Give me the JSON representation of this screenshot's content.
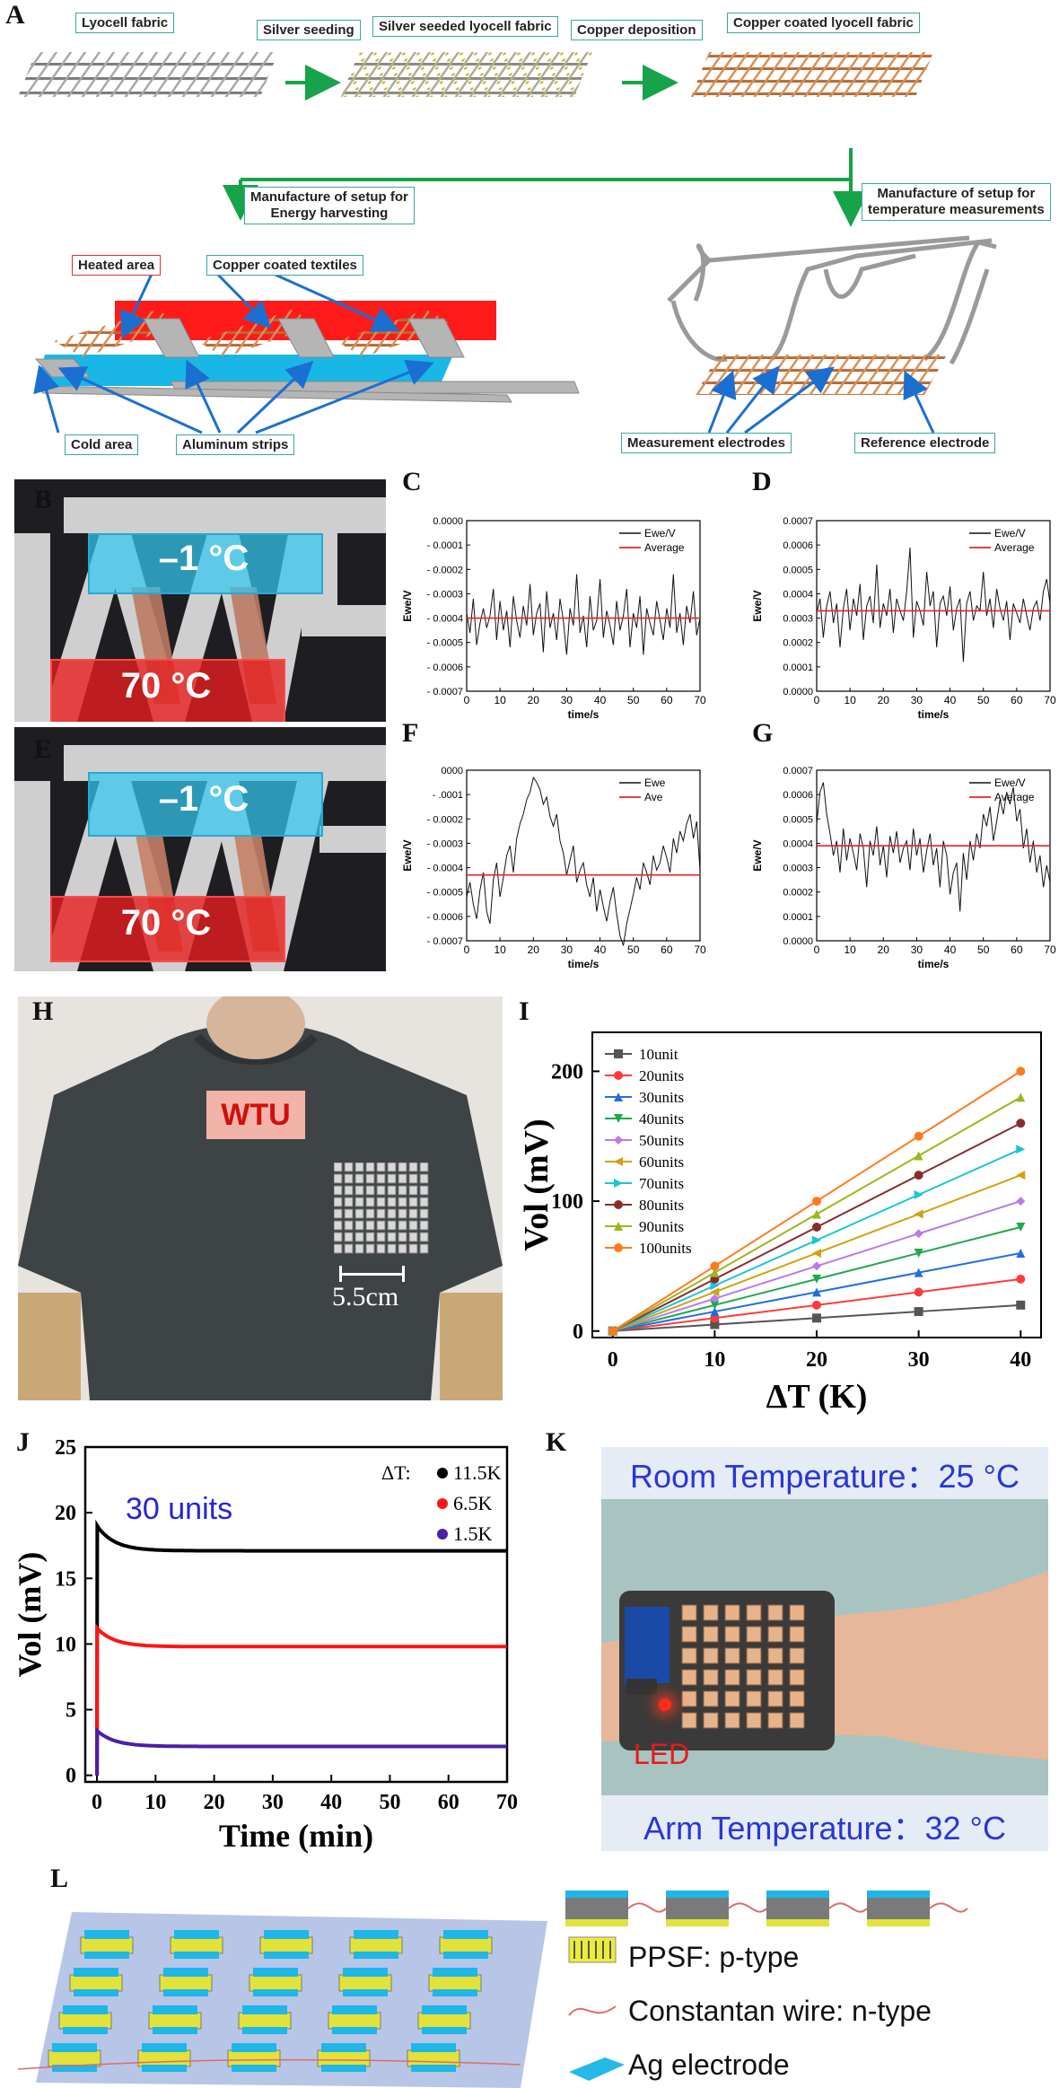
{
  "panels": {
    "A": "A",
    "B": "B",
    "C": "C",
    "D": "D",
    "E": "E",
    "F": "F",
    "G": "G",
    "H": "H",
    "I": "I",
    "J": "J",
    "K": "K",
    "L": "L"
  },
  "schematicA": {
    "lyocell": "Lyocell fabric",
    "silver_seeding": "Silver seeding",
    "silver_seeded": "Silver seeded lyocell fabric",
    "copper_deposition": "Copper deposition",
    "copper_coated": "Copper coated lyocell fabric",
    "energy_setup_l1": "Manufacture of setup for",
    "energy_setup_l2": "Energy harvesting",
    "temp_setup_l1": "Manufacture of setup for",
    "temp_setup_l2": "temperature measurements",
    "heated_area": "Heated area",
    "copper_textiles": "Copper coated textiles",
    "cold_area": "Cold area",
    "aluminum_strips": "Aluminum strips",
    "measurement_electrodes": "Measurement electrodes",
    "reference_electrode": "Reference electrode"
  },
  "photoBE": {
    "cold": "–1 °C",
    "hot": "70 °C"
  },
  "photoH": {
    "badge": "WTU",
    "scale": "5.5cm"
  },
  "photoK": {
    "room": "Room Temperature：25 °C",
    "arm": "Arm Temperature：32 °C",
    "led": "LED"
  },
  "panelL": {
    "ppsf": "PPSF: p-type",
    "wire": "Constantan wire: n-type",
    "ag": "Ag electrode"
  },
  "colors": {
    "red": "#e8222a",
    "cyan": "#1db5de",
    "copper": "#c47a45",
    "green": "#17a34a",
    "teal_border": "#3aa8a0"
  },
  "chart_data": [
    {
      "id": "C",
      "type": "line",
      "xlabel": "time/s",
      "ylabel": "Ewe/V",
      "xlim": [
        0,
        70
      ],
      "ylim": [
        -0.0007,
        0.0
      ],
      "xticks": [
        0,
        10,
        20,
        30,
        40,
        50,
        60,
        70
      ],
      "yticks": [
        0.0,
        -0.0001,
        -0.0002,
        -0.0003,
        -0.0004,
        -0.0005,
        -0.0006,
        -0.0007
      ],
      "ytick_labels": [
        "0.0000",
        "- 0.0001",
        "- 0.0002",
        "- 0.0003",
        "- 0.0004",
        "- 0.0005",
        "- 0.0006",
        "- 0.0007"
      ],
      "legend": [
        "Ewe/V",
        "Average"
      ],
      "average": -0.0004,
      "x": [
        0,
        1,
        2,
        3,
        4,
        5,
        6,
        7,
        8,
        9,
        10,
        11,
        12,
        13,
        14,
        15,
        16,
        17,
        18,
        19,
        20,
        21,
        22,
        23,
        24,
        25,
        26,
        27,
        28,
        29,
        30,
        31,
        32,
        33,
        34,
        35,
        36,
        37,
        38,
        39,
        40,
        41,
        42,
        43,
        44,
        45,
        46,
        47,
        48,
        49,
        50,
        51,
        52,
        53,
        54,
        55,
        56,
        57,
        58,
        59,
        60,
        61,
        62,
        63,
        64,
        65,
        66,
        67,
        68,
        69,
        70
      ],
      "y": [
        -0.00038,
        -0.00046,
        -0.00032,
        -0.00051,
        -0.00042,
        -0.00036,
        -0.00044,
        -0.00039,
        -0.00028,
        -0.00049,
        -0.00033,
        -0.00045,
        -0.00037,
        -0.00052,
        -0.00031,
        -0.00041,
        -0.00048,
        -0.00035,
        -0.00043,
        -0.00026,
        -0.00047,
        -0.00038,
        -0.00034,
        -0.00054,
        -0.00029,
        -0.00044,
        -0.00038,
        -0.00049,
        -0.00032,
        -0.00041,
        -0.00055,
        -0.00036,
        -0.00043,
        -0.00022,
        -0.00046,
        -0.00039,
        -0.00052,
        -0.00031,
        -0.00045,
        -0.00041,
        -0.00024,
        -0.00048,
        -0.00037,
        -0.00043,
        -0.00051,
        -0.00033,
        -0.00045,
        -0.00039,
        -0.00028,
        -0.00052,
        -0.00038,
        -0.00044,
        -0.00031,
        -0.00055,
        -0.00036,
        -0.00042,
        -0.00047,
        -0.00033,
        -0.00041,
        -0.00049,
        -0.00036,
        -0.00044,
        -0.00022,
        -0.00046,
        -0.00038,
        -0.00051,
        -0.00035,
        -0.00042,
        -0.00029,
        -0.00047,
        -0.0004
      ]
    },
    {
      "id": "D",
      "type": "line",
      "xlabel": "time/s",
      "ylabel": "Ewe/V",
      "xlim": [
        0,
        70
      ],
      "ylim": [
        0.0,
        0.0007
      ],
      "xticks": [
        0,
        10,
        20,
        30,
        40,
        50,
        60,
        70
      ],
      "yticks": [
        0.0,
        0.0001,
        0.0002,
        0.0003,
        0.0004,
        0.0005,
        0.0006,
        0.0007
      ],
      "ytick_labels": [
        "0.0000",
        "0.0001",
        "0.0002",
        "0.0003",
        "0.0004",
        "0.0005",
        "0.0006",
        "0.0007"
      ],
      "legend": [
        "Ewe/V",
        "Average"
      ],
      "average": 0.00033,
      "x": [
        0,
        1,
        2,
        3,
        4,
        5,
        6,
        7,
        8,
        9,
        10,
        11,
        12,
        13,
        14,
        15,
        16,
        17,
        18,
        19,
        20,
        21,
        22,
        23,
        24,
        25,
        26,
        27,
        28,
        29,
        30,
        31,
        32,
        33,
        34,
        35,
        36,
        37,
        38,
        39,
        40,
        41,
        42,
        43,
        44,
        45,
        46,
        47,
        48,
        49,
        50,
        51,
        52,
        53,
        54,
        55,
        56,
        57,
        58,
        59,
        60,
        61,
        62,
        63,
        64,
        65,
        66,
        67,
        68,
        69,
        70
      ],
      "y": [
        0.00032,
        0.00038,
        0.00022,
        0.00035,
        0.00041,
        0.00028,
        0.00036,
        0.00018,
        0.00034,
        0.00042,
        0.00025,
        0.00038,
        0.00031,
        0.00044,
        0.00021,
        0.00035,
        0.00039,
        0.00028,
        0.00052,
        0.00026,
        0.00036,
        0.00031,
        0.00042,
        0.00024,
        0.00038,
        0.00033,
        0.00029,
        0.00041,
        0.00059,
        0.00022,
        0.00037,
        0.00033,
        0.00027,
        0.00049,
        0.00035,
        0.00041,
        0.00018,
        0.00036,
        0.00039,
        0.00031,
        0.00043,
        0.00025,
        0.00034,
        0.00038,
        0.00012,
        0.00036,
        0.00041,
        0.00029,
        0.00035,
        0.00033,
        0.00049,
        0.00031,
        0.00038,
        0.00026,
        0.00042,
        0.00034,
        0.00029,
        0.00037,
        0.00021,
        0.00036,
        0.00032,
        0.00028,
        0.00038,
        0.00031,
        0.00025,
        0.00034,
        0.00037,
        0.00029,
        0.00041,
        0.00046,
        0.00036
      ]
    },
    {
      "id": "F",
      "type": "line",
      "xlabel": "time/s",
      "ylabel": "Ewe/V",
      "xlim": [
        0,
        70
      ],
      "ylim": [
        -0.0007,
        0.0
      ],
      "xticks": [
        0,
        10,
        20,
        30,
        40,
        50,
        60,
        70
      ],
      "yticks": [
        0.0,
        -0.0001,
        -0.0002,
        -0.0003,
        -0.0004,
        -0.0005,
        -0.0006,
        -0.0007
      ],
      "ytick_labels": [
        "0000",
        "- .0001",
        "- 0.0002",
        "- 0.0003",
        "- 0.0004",
        "- 0.0005",
        "- 0.0006",
        "- 0.0007"
      ],
      "legend": [
        "Ewe",
        "Ave"
      ],
      "average": -0.00043,
      "x": [
        0,
        1,
        2,
        3,
        4,
        5,
        6,
        7,
        8,
        9,
        10,
        11,
        12,
        13,
        14,
        15,
        16,
        17,
        18,
        19,
        20,
        21,
        22,
        23,
        24,
        25,
        26,
        27,
        28,
        29,
        30,
        31,
        32,
        33,
        34,
        35,
        36,
        37,
        38,
        39,
        40,
        41,
        42,
        43,
        44,
        45,
        46,
        47,
        48,
        49,
        50,
        51,
        52,
        53,
        54,
        55,
        56,
        57,
        58,
        59,
        60,
        61,
        62,
        63,
        64,
        65,
        66,
        67,
        68,
        69,
        70
      ],
      "y": [
        -0.00052,
        -0.00046,
        -0.00055,
        -0.00061,
        -0.00049,
        -0.00042,
        -0.00058,
        -0.00063,
        -0.00045,
        -0.00038,
        -0.00052,
        -0.00044,
        -0.00035,
        -0.00031,
        -0.00042,
        -0.00028,
        -0.00022,
        -0.00018,
        -0.00012,
        -9e-05,
        -3e-05,
        -5e-05,
        -8e-05,
        -0.00014,
        -0.00011,
        -0.00019,
        -0.00023,
        -0.00018,
        -0.00029,
        -0.00034,
        -0.00043,
        -0.00037,
        -0.00031,
        -0.00046,
        -0.00041,
        -0.00038,
        -0.00047,
        -0.00052,
        -0.00044,
        -0.00058,
        -0.00049,
        -0.00056,
        -0.00062,
        -0.00054,
        -0.00048,
        -0.00059,
        -0.00068,
        -0.00072,
        -0.00063,
        -0.00057,
        -0.00051,
        -0.00044,
        -0.00049,
        -0.00038,
        -0.00042,
        -0.00047,
        -0.00035,
        -0.00041,
        -0.00038,
        -0.00031,
        -0.00036,
        -0.00042,
        -0.00028,
        -0.00034,
        -0.00025,
        -0.00029,
        -0.00022,
        -0.00018,
        -0.00028,
        -0.00021,
        -0.00041
      ]
    },
    {
      "id": "G",
      "type": "line",
      "xlabel": "time/s",
      "ylabel": "Ewe/V",
      "xlim": [
        0,
        70
      ],
      "ylim": [
        0.0,
        0.0007
      ],
      "xticks": [
        0,
        10,
        20,
        30,
        40,
        50,
        60,
        70
      ],
      "yticks": [
        0.0,
        0.0001,
        0.0002,
        0.0003,
        0.0004,
        0.0005,
        0.0006,
        0.0007
      ],
      "ytick_labels": [
        "0.0000",
        "0.0001",
        "0.0002",
        "0.0003",
        "0.0004",
        "0.0005",
        "0.0006",
        "0.0007"
      ],
      "legend": [
        "Ewe/V",
        "Average"
      ],
      "average": 0.00039,
      "x": [
        0,
        1,
        2,
        3,
        4,
        5,
        6,
        7,
        8,
        9,
        10,
        11,
        12,
        13,
        14,
        15,
        16,
        17,
        18,
        19,
        20,
        21,
        22,
        23,
        24,
        25,
        26,
        27,
        28,
        29,
        30,
        31,
        32,
        33,
        34,
        35,
        36,
        37,
        38,
        39,
        40,
        41,
        42,
        43,
        44,
        45,
        46,
        47,
        48,
        49,
        50,
        51,
        52,
        53,
        54,
        55,
        56,
        57,
        58,
        59,
        60,
        61,
        62,
        63,
        64,
        65,
        66,
        67,
        68,
        69,
        70
      ],
      "y": [
        0.00048,
        0.00061,
        0.00065,
        0.00052,
        0.00044,
        0.00035,
        0.00041,
        0.00028,
        0.00046,
        0.00033,
        0.00042,
        0.00036,
        0.00029,
        0.00044,
        0.00038,
        0.00022,
        0.00041,
        0.00035,
        0.00047,
        0.00031,
        0.00039,
        0.00026,
        0.00043,
        0.00036,
        0.00045,
        0.00032,
        0.00038,
        0.00041,
        0.00029,
        0.00046,
        0.00035,
        0.00042,
        0.00028,
        0.00037,
        0.00044,
        0.00031,
        0.00038,
        0.00022,
        0.00041,
        0.00035,
        0.00019,
        0.00028,
        0.00032,
        0.00012,
        0.00036,
        0.00025,
        0.00041,
        0.00033,
        0.00044,
        0.00038,
        0.00052,
        0.00047,
        0.00055,
        0.00041,
        0.00049,
        0.00058,
        0.00052,
        0.00061,
        0.00056,
        0.00063,
        0.00049,
        0.00054,
        0.00038,
        0.00046,
        0.00032,
        0.00041,
        0.00028,
        0.00035,
        0.00022,
        0.00031,
        0.00024
      ]
    },
    {
      "id": "I",
      "type": "line",
      "xlabel": "ΔT (K)",
      "ylabel": "Vol (mV)",
      "xlim": [
        -2,
        42
      ],
      "ylim": [
        -5,
        230
      ],
      "xticks": [
        0,
        10,
        20,
        30,
        40
      ],
      "yticks": [
        0,
        100,
        200
      ],
      "categories_x": [
        0,
        10,
        20,
        30,
        40
      ],
      "series": [
        {
          "name": "10unit",
          "color": "#555555",
          "marker": "square",
          "values": [
            0,
            5,
            10,
            15,
            20
          ]
        },
        {
          "name": "20units",
          "color": "#ff3b3b",
          "marker": "circle",
          "values": [
            0,
            10,
            20,
            30,
            40
          ]
        },
        {
          "name": "30units",
          "color": "#1f6fe0",
          "marker": "triangle",
          "values": [
            0,
            15,
            30,
            45,
            60
          ]
        },
        {
          "name": "40units",
          "color": "#1fa84d",
          "marker": "triangle-down",
          "values": [
            0,
            20,
            40,
            60,
            80
          ]
        },
        {
          "name": "50units",
          "color": "#b97be8",
          "marker": "diamond",
          "values": [
            0,
            25,
            50,
            75,
            100
          ]
        },
        {
          "name": "60units",
          "color": "#d1a211",
          "marker": "triangle-left",
          "values": [
            0,
            30,
            60,
            90,
            120
          ]
        },
        {
          "name": "70units",
          "color": "#19c6d6",
          "marker": "triangle-right",
          "values": [
            0,
            35,
            70,
            105,
            140
          ]
        },
        {
          "name": "80units",
          "color": "#8a2c2c",
          "marker": "circle",
          "values": [
            0,
            40,
            80,
            120,
            160
          ]
        },
        {
          "name": "90units",
          "color": "#99b81c",
          "marker": "triangle",
          "values": [
            0,
            45,
            90,
            135,
            180
          ]
        },
        {
          "name": "100units",
          "color": "#ff7a1f",
          "marker": "circle",
          "values": [
            0,
            50,
            100,
            150,
            200
          ]
        }
      ]
    },
    {
      "id": "J",
      "type": "scatter",
      "xlabel": "Time (min)",
      "ylabel": "Vol (mV)",
      "xlim": [
        -2,
        70
      ],
      "ylim": [
        -0.5,
        25
      ],
      "xticks": [
        0,
        10,
        20,
        30,
        40,
        50,
        60,
        70
      ],
      "yticks": [
        0,
        5,
        10,
        15,
        20,
        25
      ],
      "annotation": "30 units",
      "legend_title": "ΔT:",
      "series": [
        {
          "name": "11.5K",
          "color": "#000000",
          "peak": 19.0,
          "steady": 17.1
        },
        {
          "name": "6.5K",
          "color": "#ff1414",
          "peak": 11.2,
          "steady": 9.8
        },
        {
          "name": "1.5K",
          "color": "#4b1fa8",
          "peak": 3.4,
          "steady": 2.2
        }
      ]
    }
  ]
}
